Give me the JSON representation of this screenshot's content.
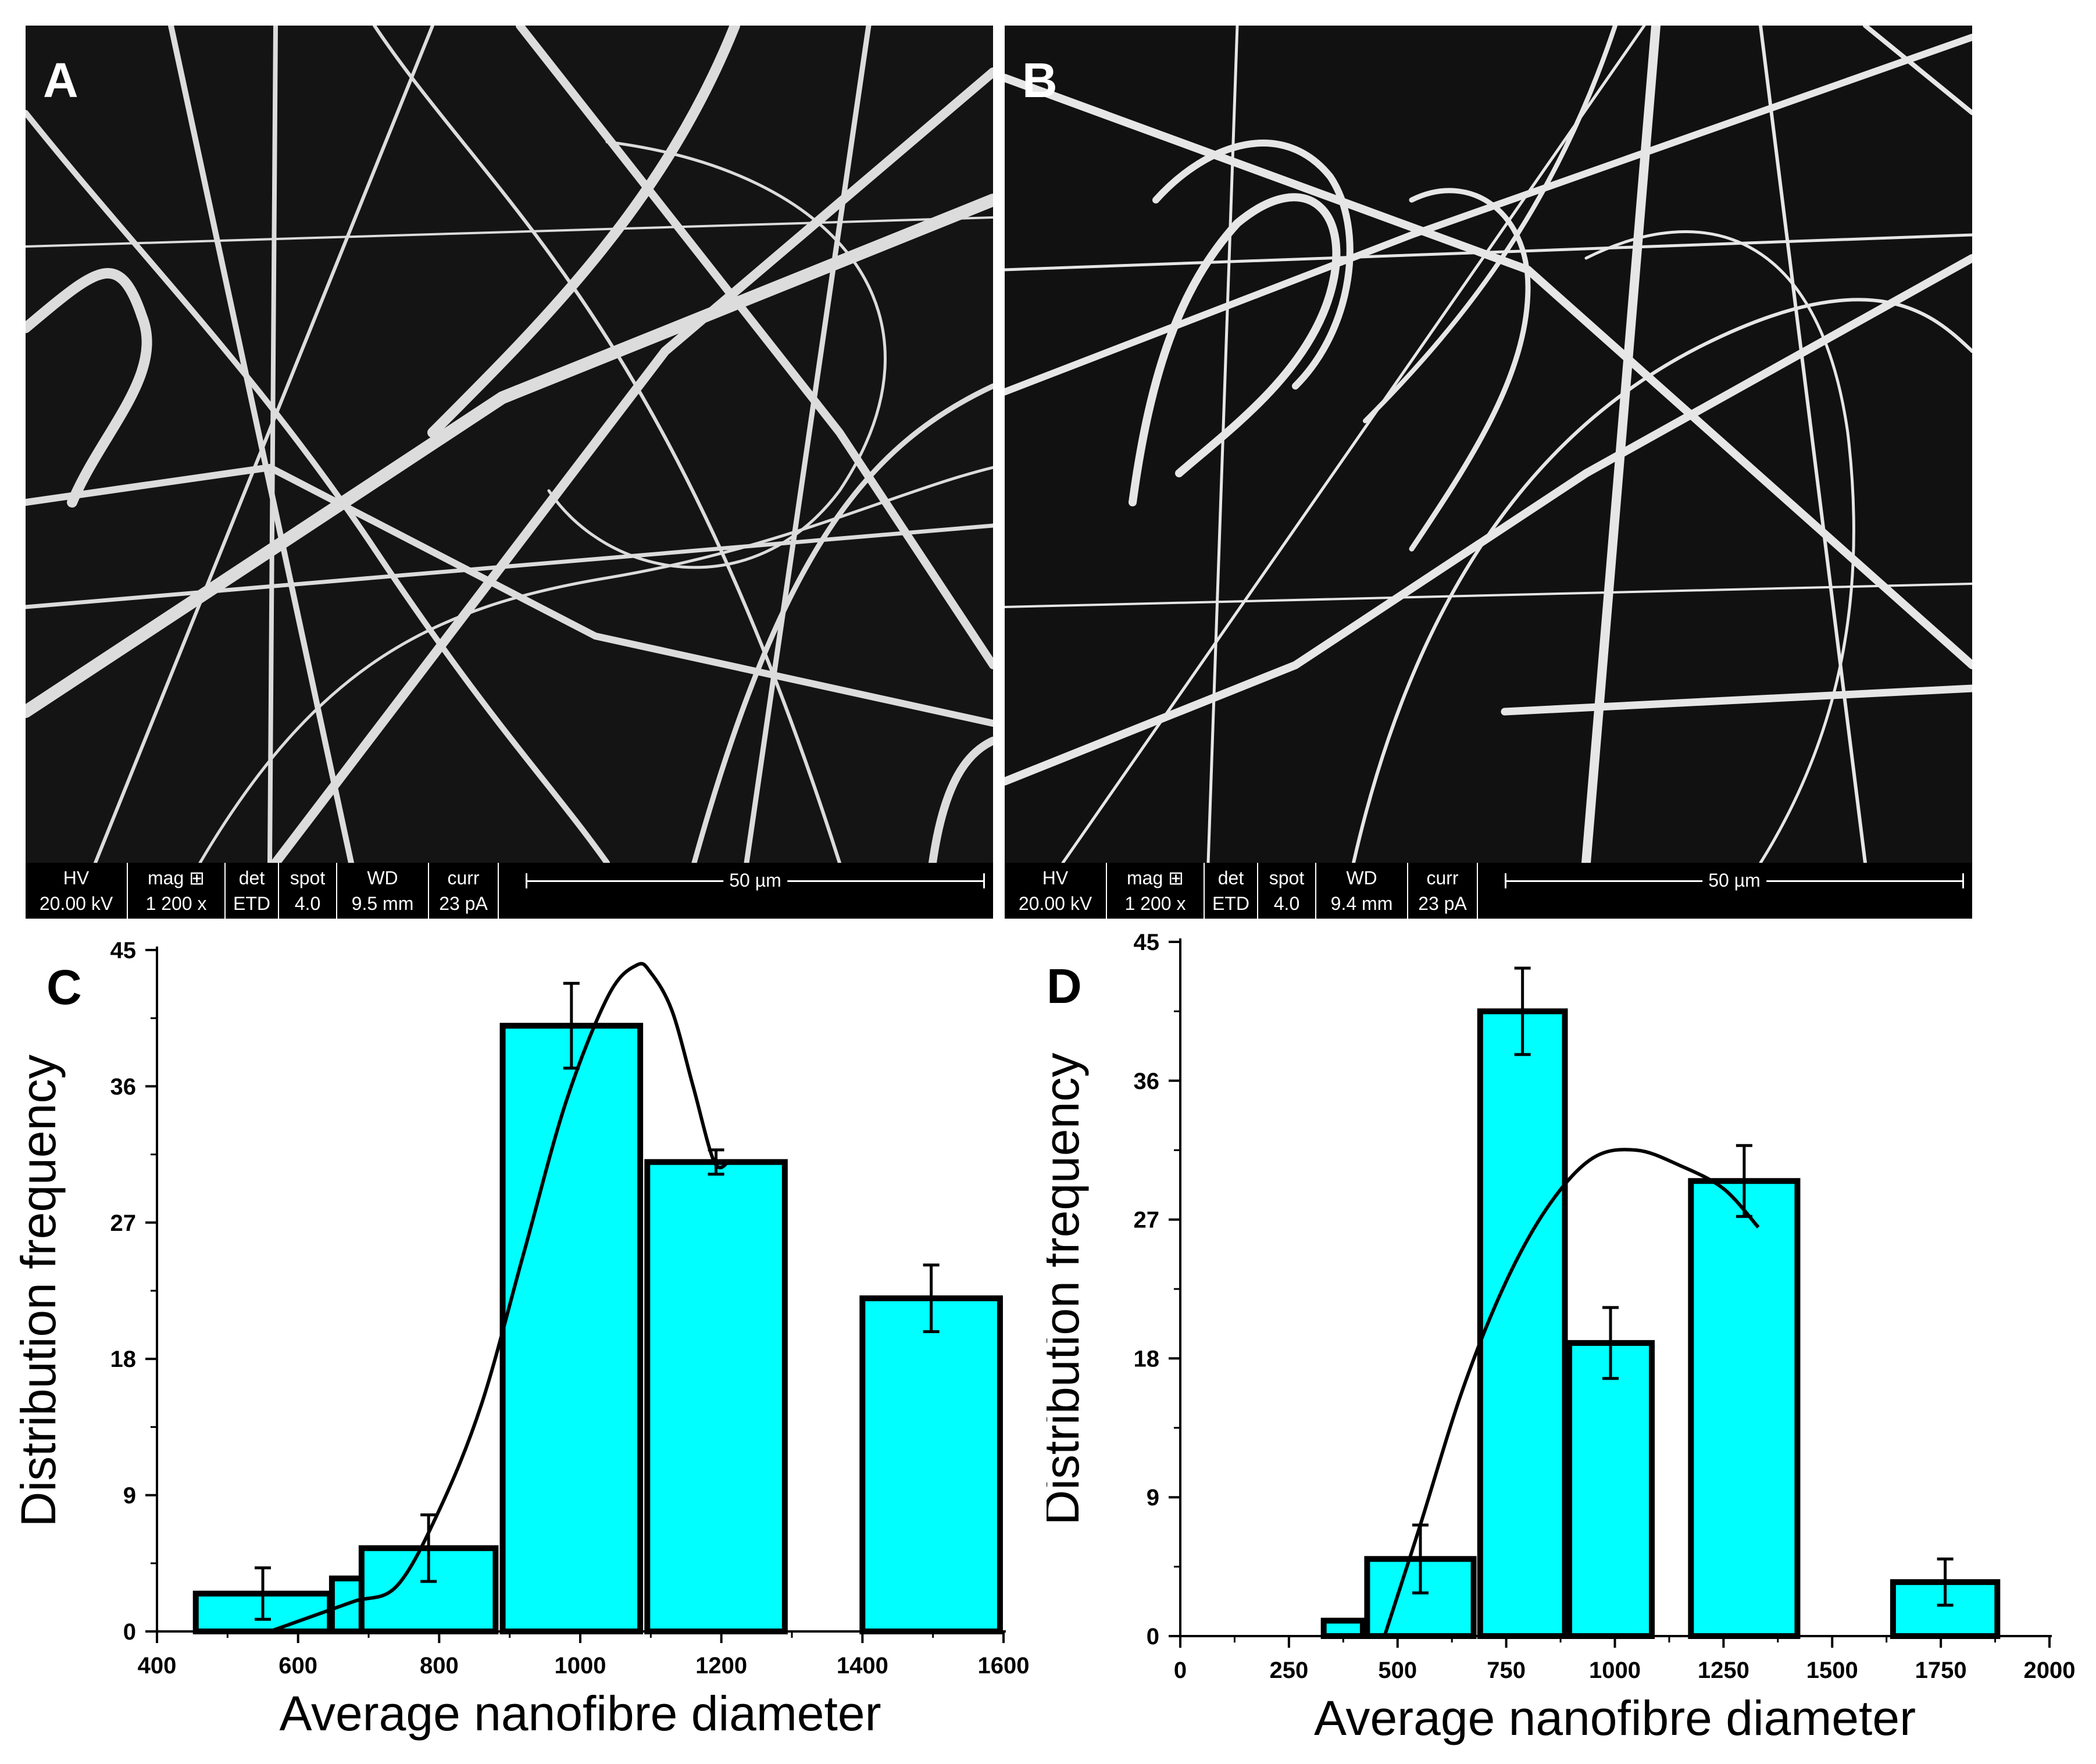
{
  "panels": {
    "a": {
      "letter": "A",
      "infobar": {
        "hv_label": "HV",
        "hv_value": "20.00 kV",
        "mag_label": "mag ⊞",
        "mag_value": "1 200 x",
        "det_label": "det",
        "det_value": "ETD",
        "spot_label": "spot",
        "spot_value": "4.0",
        "wd_label": "WD",
        "wd_value": "9.5 mm",
        "curr_label": "curr",
        "curr_value": "23 pA",
        "scale_label": "50 µm"
      }
    },
    "b": {
      "letter": "B",
      "infobar": {
        "hv_label": "HV",
        "hv_value": "20.00 kV",
        "mag_label": "mag ⊞",
        "mag_value": "1 200 x",
        "det_label": "det",
        "det_value": "ETD",
        "spot_label": "spot",
        "spot_value": "4.0",
        "wd_label": "WD",
        "wd_value": "9.4 mm",
        "curr_label": "curr",
        "curr_value": "23 pA",
        "scale_label": "50 µm"
      }
    },
    "c": {
      "letter": "C"
    },
    "d": {
      "letter": "D"
    }
  },
  "colors": {
    "bar_fill": "#00ffff",
    "bar_stroke": "#000000",
    "fit_line": "#000000",
    "sem_background": "#111111"
  },
  "chart_data": [
    {
      "panel": "C",
      "type": "bar",
      "title": "",
      "xlabel": "Average nanofibre diameter",
      "ylabel": "Distribution frequency",
      "xlim": [
        400,
        1600
      ],
      "ylim": [
        0,
        45
      ],
      "xticks": [
        400,
        600,
        800,
        1000,
        1200,
        1400,
        1600
      ],
      "yticks": [
        0,
        9,
        18,
        27,
        36,
        45
      ],
      "bars": [
        {
          "x0": 455,
          "x1": 645,
          "value": 2.5,
          "err": 1.7
        },
        {
          "x0": 648,
          "x1": 690,
          "value": 3.5,
          "err": null
        },
        {
          "x0": 690,
          "x1": 880,
          "value": 5.5,
          "err": 2.2
        },
        {
          "x0": 890,
          "x1": 1085,
          "value": 40,
          "err": 2.8
        },
        {
          "x0": 1095,
          "x1": 1290,
          "value": 31,
          "err": 0.8
        },
        {
          "x0": 1400,
          "x1": 1595,
          "value": 22,
          "err": 2.2
        }
      ],
      "fit": {
        "x": [
          560,
          620,
          680,
          740,
          800,
          860,
          920,
          980,
          1040,
          1080,
          1100,
          1130,
          1160,
          1190,
          1210
        ],
        "y": [
          0,
          1,
          2,
          3,
          8,
          15,
          25,
          35,
          42,
          44,
          43.5,
          41,
          36,
          31,
          31
        ]
      }
    },
    {
      "panel": "D",
      "type": "bar",
      "title": "",
      "xlabel": "Average nanofibre diameter",
      "ylabel": "Distribution frequency",
      "xlim": [
        0,
        2000
      ],
      "ylim": [
        0,
        45
      ],
      "xticks": [
        0,
        250,
        500,
        750,
        1000,
        1250,
        1500,
        1750,
        2000
      ],
      "yticks": [
        0,
        9,
        18,
        27,
        36,
        45
      ],
      "bars": [
        {
          "x0": 330,
          "x1": 420,
          "value": 1,
          "err": null
        },
        {
          "x0": 430,
          "x1": 675,
          "value": 5,
          "err": 2.2
        },
        {
          "x0": 690,
          "x1": 885,
          "value": 40.5,
          "err": 2.8
        },
        {
          "x0": 895,
          "x1": 1085,
          "value": 19,
          "err": 2.3
        },
        {
          "x0": 1175,
          "x1": 1420,
          "value": 29.5,
          "err": 2.3
        },
        {
          "x0": 1640,
          "x1": 1880,
          "value": 3.5,
          "err": 1.5
        }
      ],
      "fit": {
        "x": [
          470,
          550,
          650,
          750,
          850,
          950,
          1050,
          1150,
          1250,
          1330
        ],
        "y": [
          0,
          7,
          16,
          23,
          28,
          31,
          31.5,
          30.5,
          29,
          26.5
        ]
      }
    }
  ]
}
